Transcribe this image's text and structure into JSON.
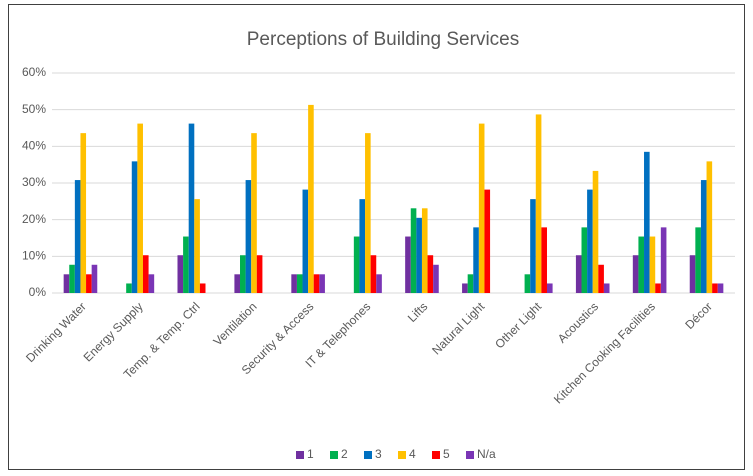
{
  "chart_data": {
    "type": "bar",
    "title": "Perceptions of Building Services",
    "categories": [
      "Drinking Water",
      "Energy Supply",
      "Temp. & Temp. Ctrl",
      "Ventilation",
      "Security & Access",
      "IT & Telephones",
      "Lifts",
      "Natural Light",
      "Other Light",
      "Acoustics",
      "Kitchen Cooking Facilities",
      "Décor"
    ],
    "series": [
      {
        "name": "1",
        "color": "#7030a0",
        "values": [
          5.1,
          0,
          10.3,
          5.1,
          5.1,
          0,
          15.4,
          2.6,
          0,
          10.3,
          10.3,
          10.3
        ]
      },
      {
        "name": "2",
        "color": "#00b050",
        "values": [
          7.7,
          2.6,
          15.4,
          10.3,
          5.1,
          15.4,
          23.1,
          5.1,
          5.1,
          17.9,
          15.4,
          17.9
        ]
      },
      {
        "name": "3",
        "color": "#0070c0",
        "values": [
          30.8,
          35.9,
          46.2,
          30.8,
          28.2,
          25.6,
          20.5,
          17.9,
          25.6,
          28.2,
          38.5,
          30.8
        ]
      },
      {
        "name": "4",
        "color": "#ffc000",
        "values": [
          43.6,
          46.2,
          25.6,
          43.6,
          51.3,
          43.6,
          23.1,
          46.2,
          48.7,
          33.3,
          15.4,
          35.9
        ]
      },
      {
        "name": "5",
        "color": "#ff0000",
        "values": [
          5.1,
          10.3,
          2.6,
          10.3,
          5.1,
          10.3,
          10.3,
          28.2,
          17.9,
          7.7,
          2.6,
          2.6
        ]
      },
      {
        "name": "N/a",
        "color": "#7a35b5",
        "values": [
          7.7,
          5.1,
          0,
          0,
          5.1,
          5.1,
          7.7,
          0,
          2.6,
          2.6,
          17.9,
          2.6
        ]
      }
    ],
    "ylim": [
      0,
      60
    ],
    "yticks": [
      {
        "value": 0,
        "label": "0%"
      },
      {
        "value": 10,
        "label": "10%"
      },
      {
        "value": 20,
        "label": "20%"
      },
      {
        "value": 30,
        "label": "30%"
      },
      {
        "value": 40,
        "label": "40%"
      },
      {
        "value": 50,
        "label": "50%"
      },
      {
        "value": 60,
        "label": "60%"
      }
    ],
    "grid": true,
    "legend": "bottom"
  }
}
